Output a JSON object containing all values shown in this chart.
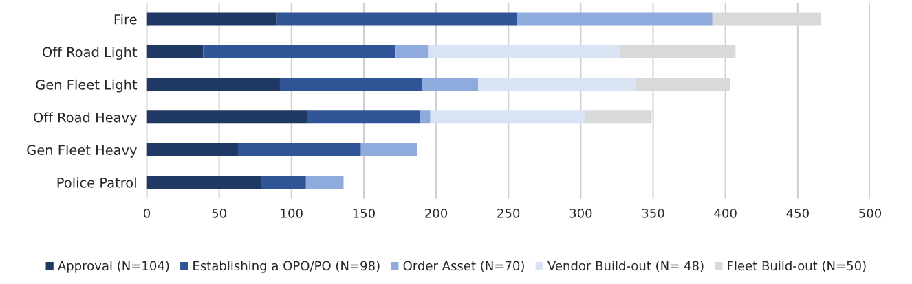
{
  "chart_data": {
    "type": "bar",
    "orientation": "horizontal",
    "stacked": true,
    "categories": [
      "Fire",
      "Off Road Light",
      "Gen Fleet Light",
      "Off Road Heavy",
      "Gen Fleet Heavy",
      "Police Patrol"
    ],
    "series": [
      {
        "name": "Approval (N=104)",
        "color": "#203864",
        "values": [
          90,
          39,
          92,
          111,
          63,
          79
        ]
      },
      {
        "name": "Establishing a OPO/PO (N=98)",
        "color": "#2f5597",
        "values": [
          166,
          133,
          98,
          78,
          85,
          31
        ]
      },
      {
        "name": "Order Asset (N=70)",
        "color": "#8faadc",
        "values": [
          135,
          23,
          39,
          7,
          39,
          26
        ]
      },
      {
        "name": "Vendor Build-out (N= 48)",
        "color": "#dae3f3",
        "values": [
          null,
          132,
          109,
          107,
          null,
          null
        ]
      },
      {
        "name": "Fleet Build-out (N=50)",
        "color": "#d9d9d9",
        "values": [
          75,
          80,
          65,
          46,
          null,
          null
        ]
      }
    ],
    "xlim": [
      0,
      500
    ],
    "xticks": [
      0,
      50,
      100,
      150,
      200,
      250,
      300,
      350,
      400,
      450,
      500
    ],
    "grid": "x",
    "legend": "bottom"
  }
}
